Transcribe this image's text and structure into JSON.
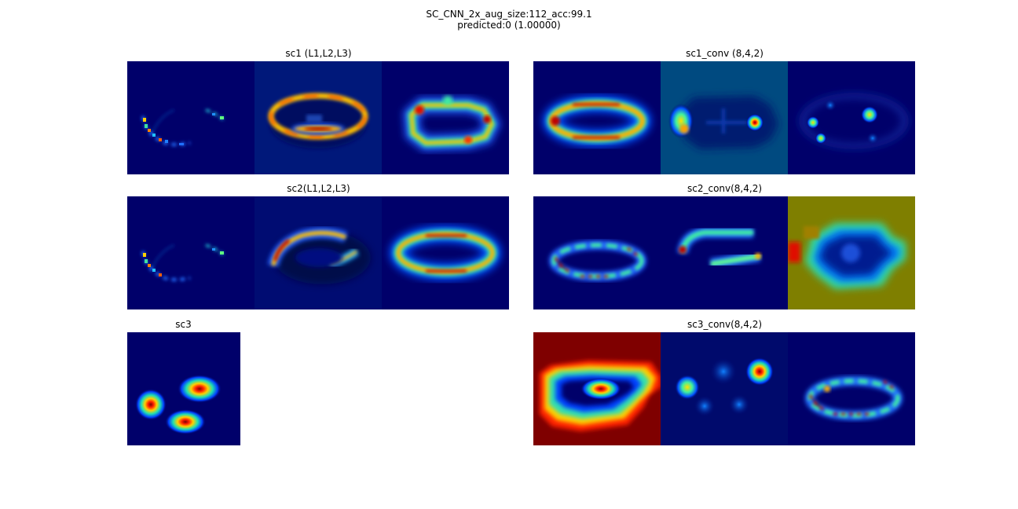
{
  "figure": {
    "title_line1": "SC_CNN_2x_aug_size:112_acc:99.1",
    "title_line2": "predicted:0 (1.00000)"
  },
  "panels": {
    "sc1": {
      "title": "sc1 (L1,L2,L3)"
    },
    "sc1_conv": {
      "title": "sc1_conv (8,4,2)"
    },
    "sc2": {
      "title": "sc2(L1,L2,L3)"
    },
    "sc2_conv": {
      "title": "sc2_conv(8,4,2)"
    },
    "sc3": {
      "title": "sc3"
    },
    "sc3_conv": {
      "title": "sc3_conv(8,4,2)"
    }
  },
  "colormap": {
    "name": "jet",
    "background": "#00006a",
    "dark_red": "#7f0000",
    "olive": "#7f7f00",
    "teal_blue": "#004a80",
    "mid_blue": "#00187a"
  }
}
